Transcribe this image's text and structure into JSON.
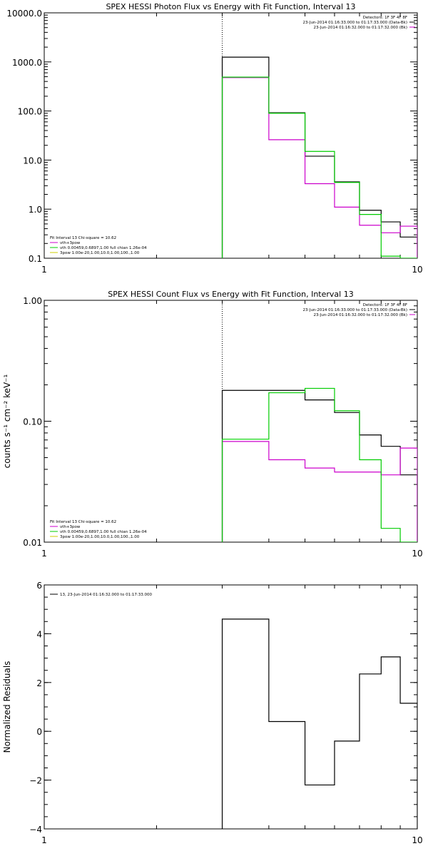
{
  "chart_data": [
    {
      "type": "line",
      "title": "SPEX HESSI Photon Flux vs Energy with Fit Function, Interval 13",
      "ylabel": "",
      "xscale": "log",
      "yscale": "log",
      "xlim": [
        1,
        10
      ],
      "ylim": [
        0.1,
        10000
      ],
      "xticks": [
        1,
        10
      ],
      "xtick_labels": [
        "1",
        "10"
      ],
      "yticks": [
        0.1,
        1,
        10,
        100,
        1000,
        10000
      ],
      "ytick_labels": [
        "0.1",
        "1.0",
        "10.0",
        "100.0",
        "1000.0",
        "10000.0"
      ],
      "vline_x": 3,
      "edges": [
        3,
        4,
        5,
        6,
        7,
        8,
        9,
        10
      ],
      "header_lines": [
        "Detectors: 1F 3F 4F 8F",
        "23-Jun-2014 01:16:33.000 to 01:17:33.000 (Data-Bk)",
        "23-Jun-2014 01:16:32.000 to 01:17:32.000 (Bk)"
      ],
      "header_colors": [
        "",
        "#000000",
        "#cc00cc"
      ],
      "legend_lines": [
        "Fit Interval 13    Chi-square = 10.62",
        "vth+3pow",
        "vth 0.00459,0.6897,1.00  full chian 1.26e-04",
        "3pow 1.00e-20,1.00,10.0,1.00,100.,1.00"
      ],
      "legend_colors": [
        "",
        "#cc00cc",
        "#00cc00",
        "#cccc00"
      ],
      "series": [
        {
          "color": "#000000",
          "values": [
            1250,
            92,
            12,
            3.6,
            0.95,
            0.55,
            0.27
          ]
        },
        {
          "color": "#cc00cc",
          "values": [
            480,
            26,
            3.3,
            1.1,
            0.47,
            0.33,
            0.45
          ]
        },
        {
          "color": "#00cc00",
          "values": [
            490,
            90,
            15,
            3.5,
            0.78,
            0.11,
            0.05
          ]
        }
      ]
    },
    {
      "type": "line",
      "title": "SPEX HESSI Count Flux vs Energy with Fit Function, Interval 13",
      "ylabel": "counts s⁻¹ cm⁻² keV⁻¹",
      "xscale": "log",
      "yscale": "log",
      "xlim": [
        1,
        10
      ],
      "ylim": [
        0.01,
        1
      ],
      "xticks": [
        1,
        10
      ],
      "xtick_labels": [
        "1",
        "10"
      ],
      "yticks": [
        0.01,
        0.1,
        1
      ],
      "ytick_labels": [
        "0.01",
        "0.10",
        "1.00"
      ],
      "vline_x": 3,
      "edges": [
        3,
        4,
        5,
        6,
        7,
        8,
        9,
        10
      ],
      "header_lines": [
        "Detectors: 1F 3F 4F 8F",
        "23-Jun-2014 01:16:33.000 to 01:17:33.000 (Data-Bk)",
        "23-Jun-2014 01:16:32.000 to 01:17:32.000 (Bk)"
      ],
      "header_colors": [
        "",
        "#000000",
        "#cc00cc"
      ],
      "legend_lines": [
        "Fit Interval 13    Chi-square = 10.62",
        "vth+3pow",
        "vth 0.00459,0.6897,1.00  full chian 1.26e-04",
        "3pow 1.00e-20,1.00,10.0,1.00,100.,1.00"
      ],
      "legend_colors": [
        "",
        "#cc00cc",
        "#00cc00",
        "#cccc00"
      ],
      "series": [
        {
          "color": "#000000",
          "values": [
            0.18,
            0.18,
            0.15,
            0.118,
            0.077,
            0.062,
            0.036
          ]
        },
        {
          "color": "#cc00cc",
          "values": [
            0.068,
            0.048,
            0.041,
            0.038,
            0.038,
            0.036,
            0.06
          ]
        },
        {
          "color": "#00cc00",
          "values": [
            0.071,
            0.172,
            0.187,
            0.122,
            0.048,
            0.013,
            0.005
          ]
        }
      ]
    },
    {
      "type": "line",
      "title": "",
      "ylabel": "Normalized Residuals",
      "xscale": "log",
      "yscale": "linear",
      "xlim": [
        1,
        10
      ],
      "ylim": [
        -4,
        6
      ],
      "xticks": [
        1,
        10
      ],
      "xtick_labels": [
        "1",
        "10"
      ],
      "yticks": [
        -4,
        -2,
        0,
        2,
        4,
        6
      ],
      "ytick_labels": [
        "−4",
        "−2",
        "0",
        "2",
        "4",
        "6"
      ],
      "edges": [
        3,
        4,
        5,
        6,
        7,
        8,
        9,
        10
      ],
      "legend_lines": [
        "13, 23-Jun-2014 01:16:32.000 to 01:17:33.000"
      ],
      "legend_colors": [
        "#000000"
      ],
      "series": [
        {
          "color": "#000000",
          "values": [
            4.6,
            0.4,
            -2.2,
            -0.4,
            2.35,
            3.05,
            1.15
          ]
        }
      ]
    }
  ]
}
